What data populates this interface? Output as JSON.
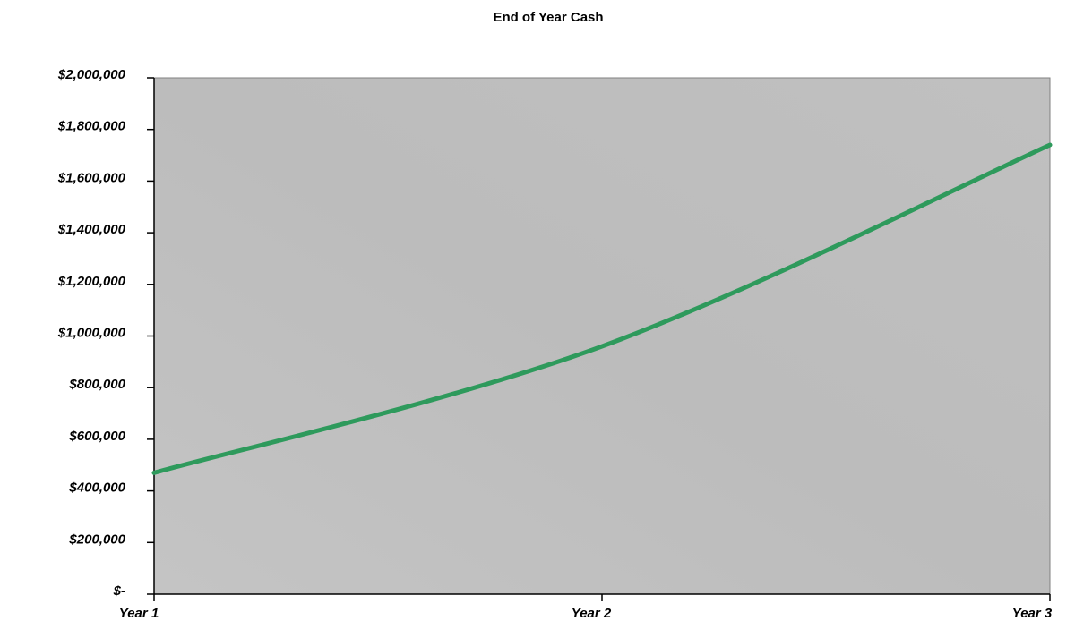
{
  "chart_data": {
    "type": "line",
    "title": "End of Year Cash",
    "categories": [
      "Year 1",
      "Year 2",
      "Year 3"
    ],
    "series": [
      {
        "name": "End of Year Cash",
        "color": "#2e9a5c",
        "values": [
          470000,
          960000,
          1740000
        ]
      }
    ],
    "ylim": [
      0,
      2000000
    ],
    "yticks": [
      {
        "value": 0,
        "label": "$-"
      },
      {
        "value": 200000,
        "label": "$200,000"
      },
      {
        "value": 400000,
        "label": "$400,000"
      },
      {
        "value": 600000,
        "label": "$600,000"
      },
      {
        "value": 800000,
        "label": "$800,000"
      },
      {
        "value": 1000000,
        "label": "$1,000,000"
      },
      {
        "value": 1200000,
        "label": "$1,200,000"
      },
      {
        "value": 1400000,
        "label": "$1,400,000"
      },
      {
        "value": 1600000,
        "label": "$1,600,000"
      },
      {
        "value": 1800000,
        "label": "$1,800,000"
      },
      {
        "value": 2000000,
        "label": "$2,000,000"
      }
    ],
    "grid": false
  }
}
